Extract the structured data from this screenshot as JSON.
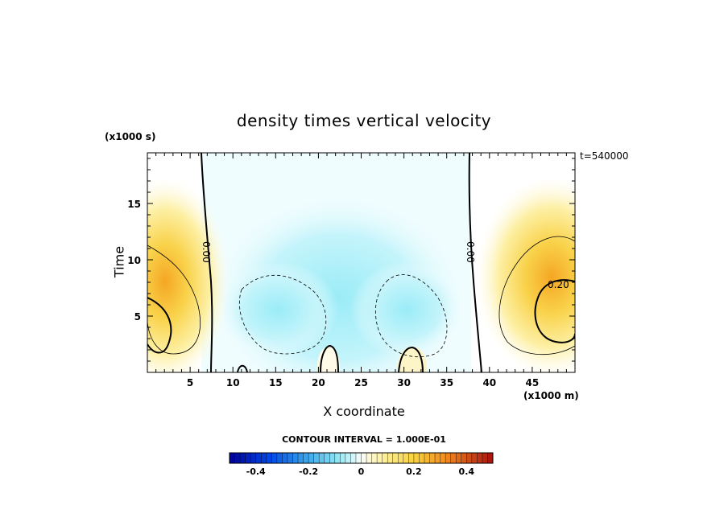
{
  "chart_data": {
    "type": "heatmap",
    "title": "density times vertical velocity",
    "xlabel": "X coordinate",
    "ylabel": "Time",
    "x_units": "(x1000 m)",
    "y_units": "(x1000 s)",
    "timestamp": "t=540000",
    "xlim": [
      0,
      50
    ],
    "ylim": [
      0,
      19.5
    ],
    "x_ticks": [
      5,
      10,
      15,
      20,
      25,
      30,
      35,
      40,
      45
    ],
    "y_ticks": [
      5,
      10,
      15
    ],
    "contour_labels": [
      "0.00",
      "0.00",
      "0.20"
    ],
    "contour_interval": "CONTOUR INTERVAL = 1.000E-01",
    "colorbar": {
      "min": -0.5,
      "max": 0.5,
      "tick_values": [
        -0.4,
        -0.2,
        0,
        0.2,
        0.4
      ],
      "tick_labels": [
        "-0.4",
        "-0.2",
        "0",
        "0.2",
        "0.4"
      ]
    }
  }
}
